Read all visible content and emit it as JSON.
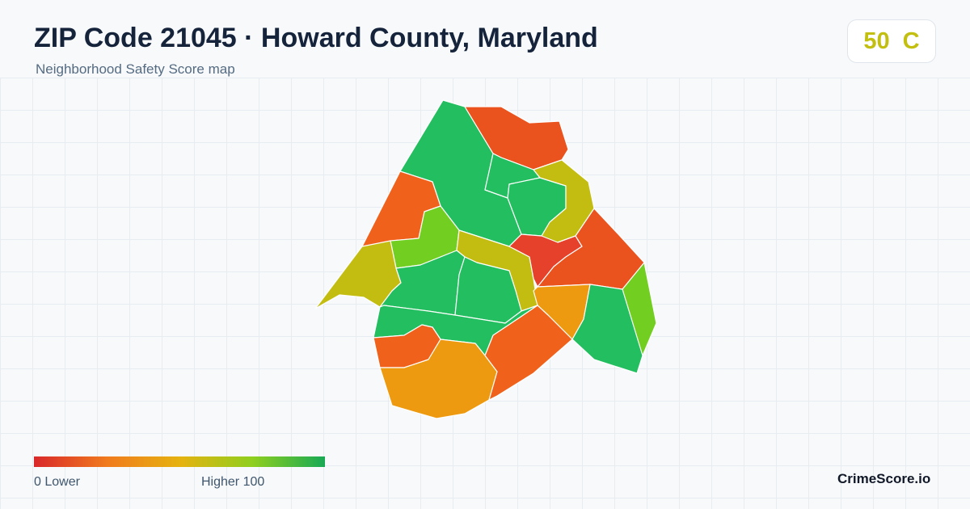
{
  "header": {
    "title": "ZIP Code 21045 · Howard County, Maryland",
    "subtitle": "Neighborhood Safety Score map"
  },
  "score_badge": {
    "score": "50",
    "grade": "C",
    "color": "#c2bf10"
  },
  "map": {
    "regions": [
      {
        "name": "north-central",
        "color": "#23be5f"
      },
      {
        "name": "northeast-top",
        "color": "#ea521e"
      },
      {
        "name": "north-inner",
        "color": "#23be5f"
      },
      {
        "name": "north-inner-east",
        "color": "#23be5f"
      },
      {
        "name": "east-corridor",
        "color": "#c3bd12"
      },
      {
        "name": "west-upper",
        "color": "#f0621c"
      },
      {
        "name": "central-west",
        "color": "#72cf22"
      },
      {
        "name": "far-west",
        "color": "#c3bd12"
      },
      {
        "name": "central-band",
        "color": "#c3bd12"
      },
      {
        "name": "central-red",
        "color": "#e6412a"
      },
      {
        "name": "east-upper",
        "color": "#ea521e"
      },
      {
        "name": "east-edge",
        "color": "#72cf22"
      },
      {
        "name": "central-lower-west",
        "color": "#23be5f"
      },
      {
        "name": "central-lower-east",
        "color": "#23be5f"
      },
      {
        "name": "south-center-orange",
        "color": "#ee9a10"
      },
      {
        "name": "southeast-green",
        "color": "#23be5f"
      },
      {
        "name": "south-green-band",
        "color": "#23be5f"
      },
      {
        "name": "southwest-orange",
        "color": "#f0621c"
      },
      {
        "name": "south-orange",
        "color": "#ee9a10"
      },
      {
        "name": "southeast-orange",
        "color": "#f0621c"
      }
    ]
  },
  "legend": {
    "low_label": "0  Lower",
    "high_label": "Higher  100",
    "gradient_colors": [
      "#d9282a",
      "#f07a1e",
      "#e6b210",
      "#8fcf1e",
      "#18a954"
    ]
  },
  "footer": {
    "brand": "CrimeScore.io"
  }
}
